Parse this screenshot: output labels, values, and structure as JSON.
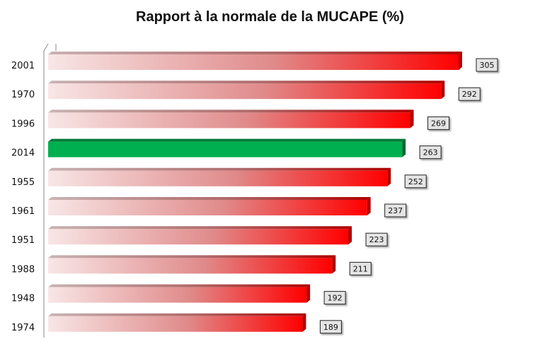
{
  "chart_data": {
    "type": "bar",
    "orientation": "horizontal",
    "title": "Rapport à la normale de la MUCAPE (%)",
    "categories": [
      "2001",
      "1970",
      "1996",
      "2014",
      "1955",
      "1961",
      "1951",
      "1988",
      "1948",
      "1974"
    ],
    "values": [
      305,
      292,
      269,
      263,
      252,
      237,
      223,
      211,
      192,
      189
    ],
    "highlight": "2014",
    "xlabel": "",
    "ylabel": "",
    "xlim": [
      0,
      310
    ],
    "grid": false,
    "colors": {
      "bar_start": "#f8e6e6",
      "bar_mid": "#e08a8a",
      "bar_end": "#ff0000",
      "highlight": "#00b050",
      "label_bg": "#e4e4e4"
    }
  }
}
